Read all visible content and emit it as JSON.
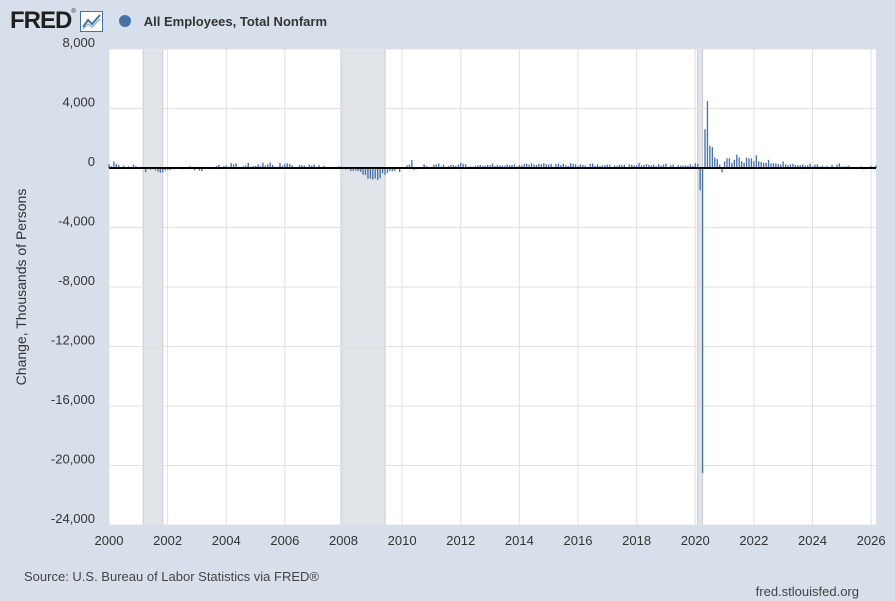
{
  "header": {
    "logo_text": "FRED",
    "logo_mark": "®",
    "logo_icon": "line-chart-icon",
    "legend_label": "All Employees, Total Nonfarm",
    "legend_color": "#4572a7"
  },
  "chart_data": {
    "type": "bar",
    "title": "",
    "series": [
      {
        "name": "All Employees, Total Nonfarm",
        "color": "#4572a7"
      }
    ],
    "ylabel": "Change, Thousands of Persons",
    "xlabel": "",
    "ylim": [
      -24000,
      8000
    ],
    "yticks": [
      8000,
      4000,
      0,
      -4000,
      -8000,
      -12000,
      -16000,
      -20000,
      -24000
    ],
    "ytick_labels": [
      "8,000",
      "4,000",
      "0",
      "-4,000",
      "-8,000",
      "-12,000",
      "-16,000",
      "-20,000",
      "-24,000"
    ],
    "xlim": [
      "2000-01",
      "2026-03"
    ],
    "xticks": [
      "2000",
      "2002",
      "2004",
      "2006",
      "2008",
      "2010",
      "2012",
      "2014",
      "2016",
      "2018",
      "2020",
      "2022",
      "2024",
      "2026"
    ],
    "recessions": [
      {
        "start": "2001-03",
        "end": "2001-11"
      },
      {
        "start": "2007-12",
        "end": "2009-06"
      },
      {
        "start": "2020-02",
        "end": "2020-04"
      }
    ],
    "grid": true,
    "monthly_change": {
      "2000": [
        250,
        130,
        450,
        280,
        220,
        -40,
        170,
        20,
        110,
        30,
        230,
        140
      ],
      "2001": [
        -20,
        80,
        -60,
        -280,
        -40,
        -130,
        -30,
        -160,
        -240,
        -320,
        -290,
        -170
      ],
      "2002": [
        -130,
        -140,
        -20,
        -80,
        -10,
        50,
        -90,
        -10,
        -50,
        120,
        20,
        -160
      ],
      "2003": [
        90,
        -170,
        -210,
        -50,
        -20,
        -10,
        20,
        10,
        130,
        210,
        10,
        120
      ],
      "2004": [
        160,
        40,
        330,
        250,
        310,
        80,
        40,
        120,
        160,
        350,
        60,
        130
      ],
      "2005": [
        140,
        240,
        140,
        360,
        170,
        240,
        370,
        200,
        80,
        90,
        340,
        160
      ],
      "2006": [
        280,
        310,
        280,
        180,
        20,
        80,
        210,
        180,
        160,
        0,
        210,
        170
      ],
      "2007": [
        240,
        90,
        190,
        80,
        140,
        80,
        -30,
        -20,
        60,
        70,
        120,
        100
      ],
      "2008": [
        10,
        -90,
        -80,
        -210,
        -190,
        -170,
        -210,
        -270,
        -460,
        -480,
        -730,
        -710
      ],
      "2009": [
        -780,
        -700,
        -800,
        -690,
        -350,
        -470,
        -330,
        -210,
        -220,
        -200,
        -10,
        -270
      ],
      "2010": [
        -20,
        -40,
        180,
        230,
        530,
        -130,
        -80,
        -40,
        -20,
        250,
        120,
        60
      ],
      "2011": [
        40,
        220,
        230,
        300,
        100,
        230,
        70,
        130,
        220,
        200,
        130,
        230
      ],
      "2012": [
        340,
        280,
        250,
        80,
        100,
        80,
        150,
        170,
        200,
        150,
        160,
        220
      ],
      "2013": [
        190,
        300,
        140,
        210,
        180,
        170,
        150,
        240,
        190,
        210,
        250,
        100
      ],
      "2014": [
        190,
        180,
        280,
        290,
        230,
        310,
        230,
        200,
        280,
        240,
        320,
        250
      ],
      "2015": [
        220,
        270,
        80,
        270,
        310,
        190,
        280,
        180,
        130,
        320,
        280,
        250
      ],
      "2016": [
        140,
        250,
        210,
        160,
        40,
        270,
        300,
        150,
        250,
        120,
        180,
        190
      ],
      "2017": [
        230,
        230,
        80,
        170,
        150,
        230,
        190,
        220,
        20,
        240,
        220,
        170
      ],
      "2018": [
        180,
        330,
        180,
        200,
        260,
        210,
        170,
        230,
        120,
        260,
        160,
        230
      ],
      "2019": [
        300,
        10,
        180,
        230,
        70,
        190,
        160,
        170,
        180,
        150,
        250,
        140
      ],
      "2020": [
        310,
        280,
        -1500,
        -20500,
        2600,
        4500,
        1500,
        1400,
        700,
        600,
        230,
        -300
      ],
      "2021": [
        450,
        650,
        650,
        350,
        550,
        900,
        700,
        450,
        350,
        700,
        650,
        650
      ],
      "2022": [
        450,
        850,
        450,
        400,
        350,
        350,
        550,
        300,
        330,
        300,
        260,
        240
      ],
      "2023": [
        450,
        260,
        200,
        250,
        280,
        200,
        190,
        200,
        250,
        150,
        180,
        280
      ],
      "2024": [
        120,
        220,
        240,
        100,
        150,
        80,
        120,
        70,
        220,
        40,
        220,
        320
      ],
      "2025": [
        110,
        100,
        120,
        160,
        20,
        -10,
        70,
        -20,
        110,
        -100,
        70,
        -20
      ],
      "2026": [
        130,
        -90,
        160
      ]
    }
  },
  "footer": {
    "source": "Source: U.S. Bureau of Labor Statistics via FRED®",
    "url": "fred.stlouisfed.org"
  }
}
